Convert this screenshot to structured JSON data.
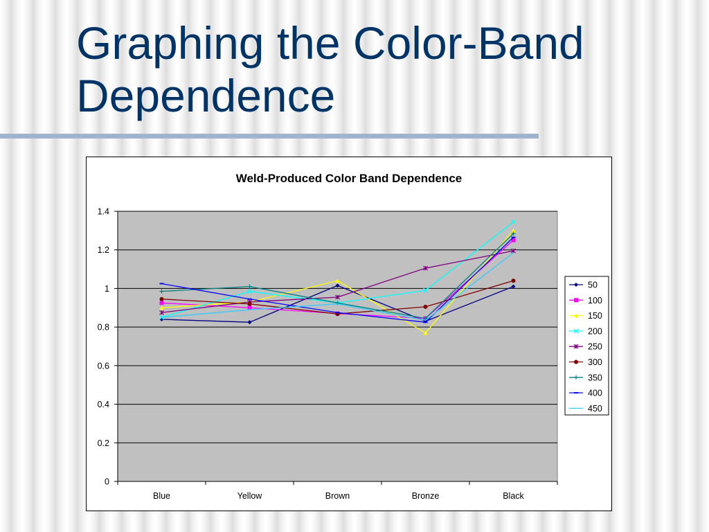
{
  "slide": {
    "title": "Graphing the Color-Band Dependence"
  },
  "colors": {
    "title": "#003366",
    "rule": "#9fb5cf",
    "plot_background": "#c0c0c0"
  },
  "chart_data": {
    "type": "line",
    "title": "Weld-Produced Color Band Dependence",
    "xlabel": "",
    "ylabel": "",
    "categories": [
      "Blue",
      "Yellow",
      "Brown",
      "Bronze",
      "Black"
    ],
    "ylim": [
      0,
      1.4
    ],
    "yticks": [
      0,
      0.2,
      0.4,
      0.6,
      0.8,
      1,
      1.2,
      1.4
    ],
    "ytick_labels": [
      "0",
      "0.2",
      "0.4",
      "0.6",
      "0.8",
      "1",
      "1.2",
      "1.4"
    ],
    "grid": true,
    "legend": "right",
    "series": [
      {
        "name": "50",
        "color": "#000080",
        "marker": "diamond",
        "values": [
          0.84,
          0.825,
          1.015,
          0.83,
          1.01
        ]
      },
      {
        "name": "100",
        "color": "#ff00ff",
        "marker": "square",
        "values": [
          0.925,
          0.9,
          0.87,
          0.845,
          1.25
        ]
      },
      {
        "name": "150",
        "color": "#ffff00",
        "marker": "triangle",
        "values": [
          0.9,
          0.93,
          1.04,
          0.77,
          1.3
        ]
      },
      {
        "name": "200",
        "color": "#00ffff",
        "marker": "x",
        "values": [
          0.85,
          0.985,
          0.925,
          0.99,
          1.345
        ]
      },
      {
        "name": "250",
        "color": "#800080",
        "marker": "star",
        "values": [
          0.875,
          0.93,
          0.955,
          1.105,
          1.195
        ]
      },
      {
        "name": "300",
        "color": "#800000",
        "marker": "circle",
        "values": [
          0.945,
          0.92,
          0.868,
          0.905,
          1.04
        ]
      },
      {
        "name": "350",
        "color": "#008080",
        "marker": "plus",
        "values": [
          0.985,
          1.01,
          0.925,
          0.845,
          1.285
        ]
      },
      {
        "name": "400",
        "color": "#0000ff",
        "marker": "dash",
        "values": [
          1.025,
          0.945,
          0.875,
          0.825,
          1.265
        ]
      },
      {
        "name": "450",
        "color": "#33ccff",
        "marker": "none",
        "values": [
          0.85,
          0.89,
          0.92,
          0.835,
          1.185
        ]
      }
    ]
  }
}
